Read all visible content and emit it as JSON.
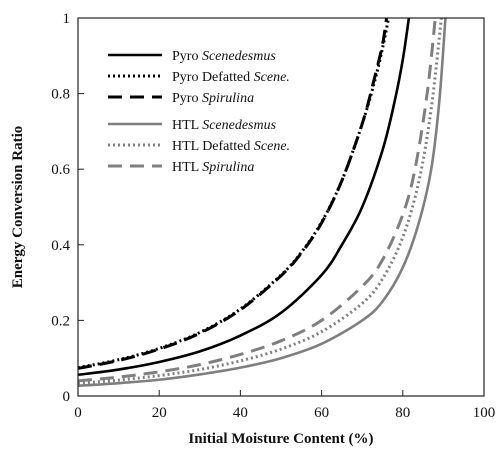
{
  "chart_data": {
    "type": "line",
    "xlabel": "Initial Moisture Content (%)",
    "ylabel": "Energy Conversion Ratio",
    "xlim": [
      0,
      100
    ],
    "ylim": [
      0,
      1
    ],
    "xticks": [
      0,
      20,
      40,
      60,
      80,
      100
    ],
    "yticks": [
      0,
      0.2,
      0.4,
      0.6,
      0.8,
      1
    ],
    "xtick_labels": [
      "0",
      "20",
      "40",
      "60",
      "80",
      "100"
    ],
    "ytick_labels": [
      "0",
      "0.2",
      "0.4",
      "0.6",
      "0.8",
      "1"
    ],
    "grid": false,
    "legend_position": "top-left",
    "series": [
      {
        "name_prefix": "Pyro",
        "name_italic": "Scenedesmus",
        "color": "#000000",
        "dash": "solid",
        "x": [
          0,
          10,
          20,
          30,
          40,
          50,
          60,
          65,
          70,
          75,
          78,
          80,
          81.5
        ],
        "y": [
          0.056,
          0.07,
          0.09,
          0.118,
          0.16,
          0.22,
          0.32,
          0.4,
          0.5,
          0.65,
          0.78,
          0.89,
          1.0
        ]
      },
      {
        "name_prefix": "Pyro Defatted",
        "name_italic": "Scene.",
        "color": "#000000",
        "dash": "dotted",
        "x": [
          0,
          10,
          20,
          30,
          40,
          50,
          55,
          60,
          65,
          70,
          73,
          75,
          76.5
        ],
        "y": [
          0.075,
          0.096,
          0.126,
          0.168,
          0.23,
          0.32,
          0.38,
          0.46,
          0.57,
          0.72,
          0.83,
          0.92,
          1.0
        ]
      },
      {
        "name_prefix": "Pyro",
        "name_italic": "Spirulina",
        "color": "#000000",
        "dash": "dashed",
        "x": [
          0,
          10,
          20,
          30,
          40,
          50,
          55,
          60,
          65,
          70,
          73,
          75,
          76
        ],
        "y": [
          0.073,
          0.094,
          0.124,
          0.166,
          0.228,
          0.318,
          0.378,
          0.458,
          0.57,
          0.72,
          0.84,
          0.93,
          1.0
        ]
      },
      {
        "name_prefix": "HTL",
        "name_italic": "Scenedesmus",
        "color": "#7f7f7f",
        "dash": "solid",
        "x": [
          0,
          10,
          20,
          30,
          40,
          50,
          60,
          70,
          75,
          80,
          84,
          87,
          89,
          90.5
        ],
        "y": [
          0.027,
          0.034,
          0.043,
          0.057,
          0.075,
          0.1,
          0.138,
          0.2,
          0.25,
          0.34,
          0.46,
          0.6,
          0.78,
          1.0
        ]
      },
      {
        "name_prefix": "HTL Defatted",
        "name_italic": "Scene.",
        "color": "#7f7f7f",
        "dash": "dotted",
        "x": [
          0,
          10,
          20,
          30,
          40,
          50,
          60,
          70,
          75,
          80,
          84,
          87,
          89.5
        ],
        "y": [
          0.034,
          0.042,
          0.054,
          0.07,
          0.093,
          0.124,
          0.17,
          0.245,
          0.31,
          0.42,
          0.57,
          0.76,
          1.0
        ]
      },
      {
        "name_prefix": "HTL",
        "name_italic": "Spirulina",
        "color": "#7f7f7f",
        "dash": "dashed",
        "x": [
          0,
          10,
          20,
          30,
          40,
          50,
          60,
          70,
          75,
          80,
          83,
          86,
          88
        ],
        "y": [
          0.04,
          0.05,
          0.064,
          0.083,
          0.11,
          0.146,
          0.2,
          0.29,
          0.36,
          0.48,
          0.6,
          0.8,
          1.0
        ]
      }
    ]
  }
}
